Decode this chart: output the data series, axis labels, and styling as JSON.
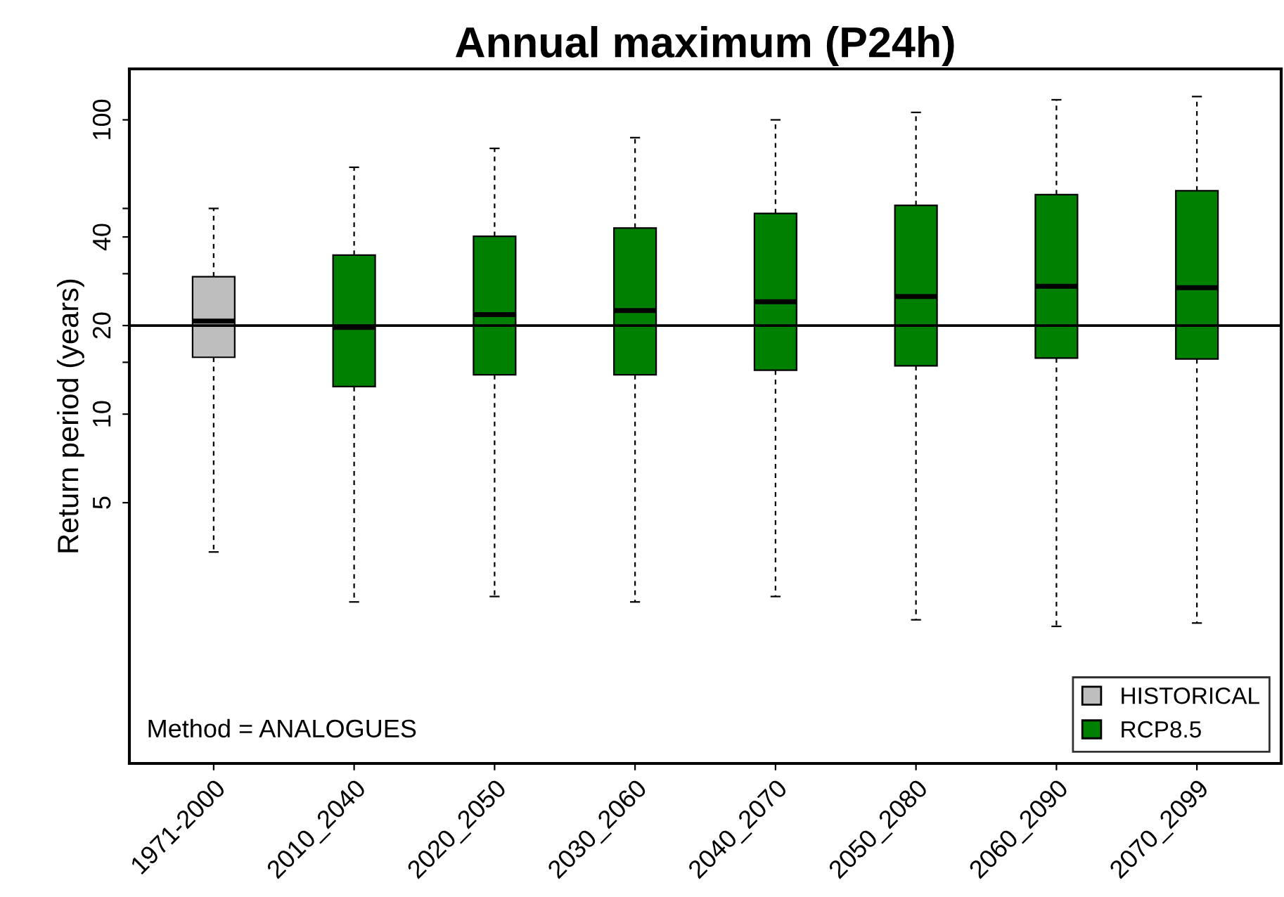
{
  "chart_data": {
    "type": "box",
    "title": "Annual maximum (P24h)",
    "ylabel": "Return period (years)",
    "categories": [
      "1971-2000",
      "2010_2040",
      "2020_2050",
      "2030_2060",
      "2040_2070",
      "2050_2080",
      "2060_2090",
      "2070_2099"
    ],
    "log": "y",
    "ylim": [
      0.65,
      149
    ],
    "yticks": [
      5,
      10,
      {
        "value": 15,
        "label": null
      },
      20,
      {
        "value": 30,
        "label": null
      },
      40,
      {
        "value": 50,
        "label": null
      },
      100
    ],
    "grid": false,
    "legend": "bottom right",
    "series": [
      {
        "name": "HISTORICAL",
        "color": "#bebebe",
        "boxes": [
          {
            "low": 3.4,
            "q1": 15.6,
            "median": 20.7,
            "q3": 29.3,
            "high": 50
          },
          null,
          null,
          null,
          null,
          null,
          null,
          null
        ]
      },
      {
        "name": "RCP8.5",
        "color": "#008000",
        "boxes": [
          null,
          {
            "low": 2.3,
            "q1": 12.4,
            "median": 19.7,
            "q3": 34.7,
            "high": 69
          },
          {
            "low": 2.4,
            "q1": 13.6,
            "median": 21.8,
            "q3": 40.2,
            "high": 80
          },
          {
            "low": 2.3,
            "q1": 13.6,
            "median": 22.5,
            "q3": 42.9,
            "high": 87
          },
          {
            "low": 2.4,
            "q1": 14.1,
            "median": 24.1,
            "q3": 48.1,
            "high": 100
          },
          {
            "low": 2.0,
            "q1": 14.6,
            "median": 25.1,
            "q3": 51.2,
            "high": 106
          },
          {
            "low": 1.9,
            "q1": 15.5,
            "median": 27.2,
            "q3": 55.7,
            "high": 117
          },
          {
            "low": 1.95,
            "q1": 15.4,
            "median": 26.9,
            "q3": 57.4,
            "high": 120
          }
        ]
      }
    ],
    "ref_lines": [
      {
        "axis": "y",
        "value": 20,
        "color": "#000000"
      }
    ],
    "annotations": [
      "Method = ANALOGUES"
    ]
  }
}
